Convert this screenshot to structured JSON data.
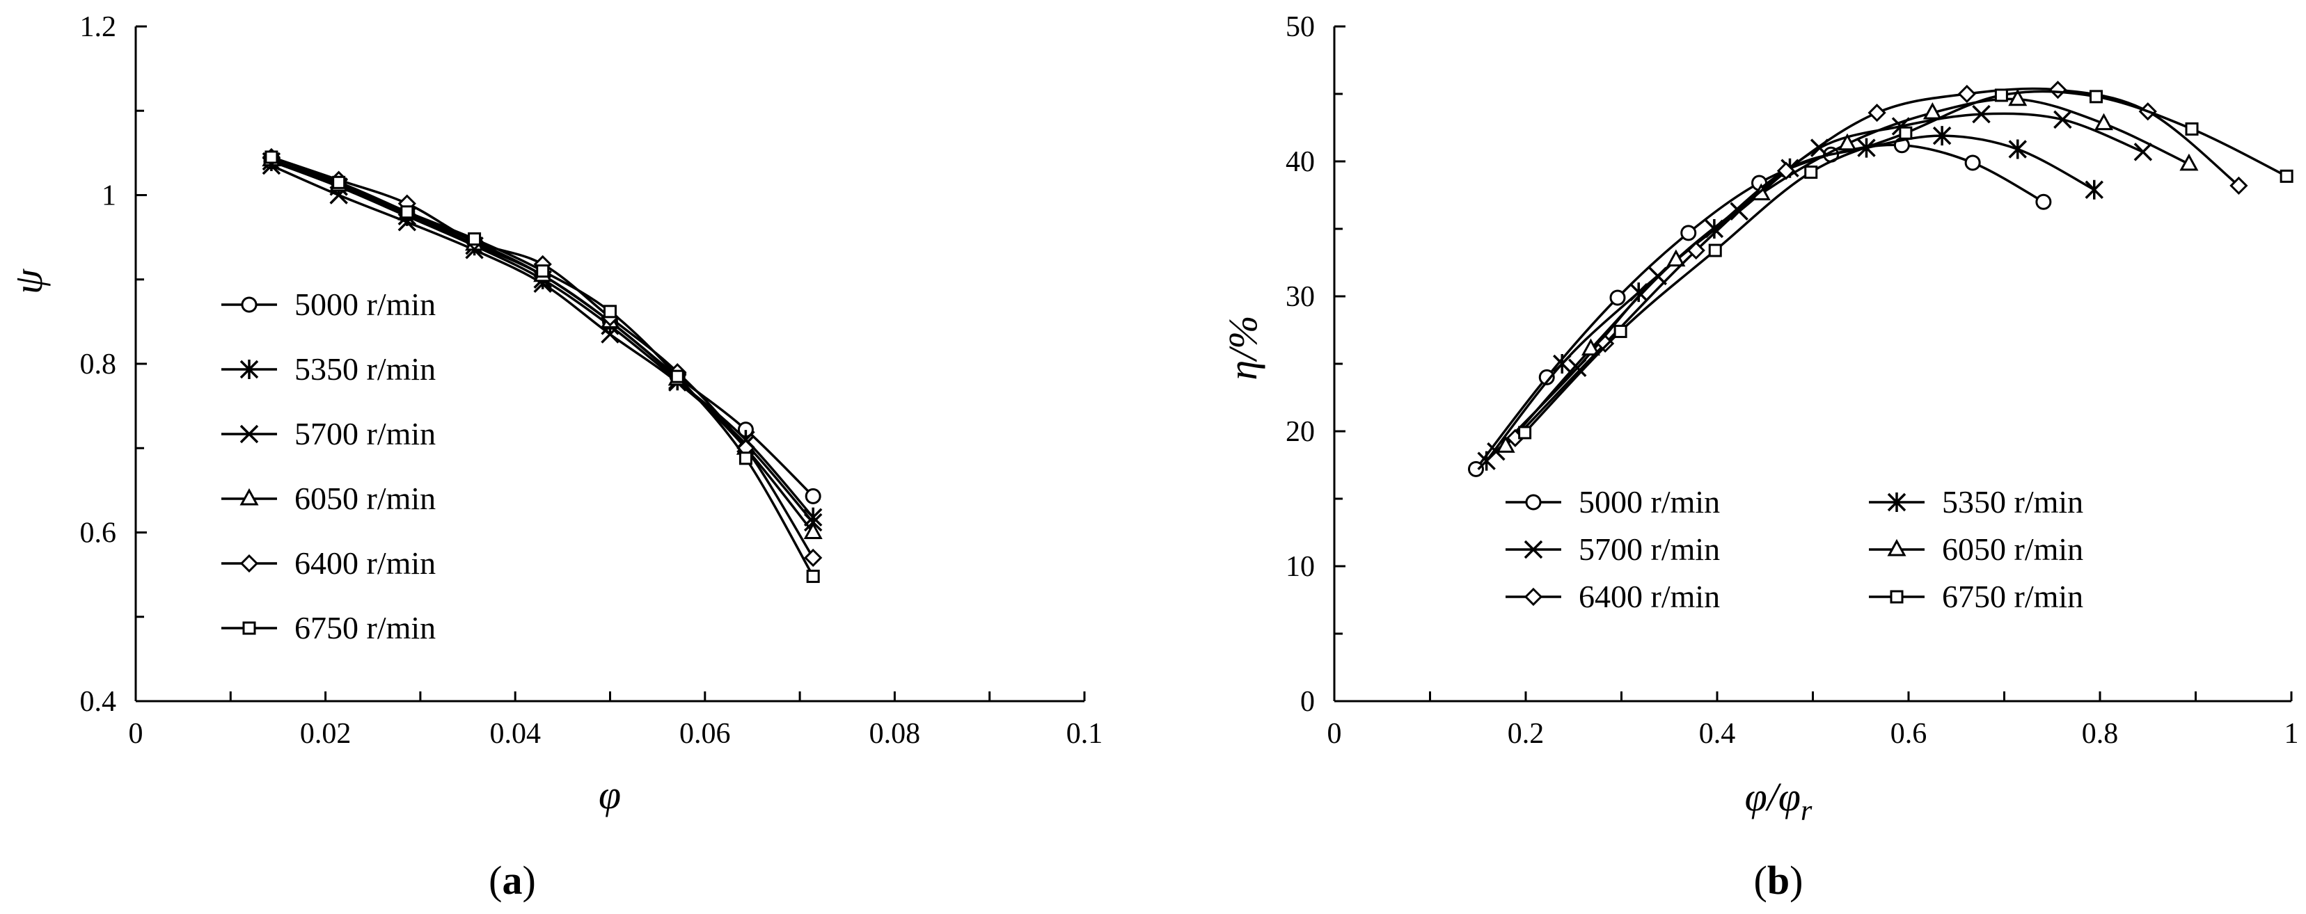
{
  "chart_data": [
    {
      "type": "line",
      "panel_label": "a",
      "xlabel": "φ",
      "ylabel": "ψ",
      "xlim": [
        0,
        0.1
      ],
      "ylim": [
        0.4,
        1.2
      ],
      "xticks": [
        0,
        0.02,
        0.04,
        0.06,
        0.08,
        0.1
      ],
      "xtick_labels": [
        "0",
        "0.02",
        "0.04",
        "0.06",
        "0.08",
        "0.1"
      ],
      "yticks": [
        0.4,
        0.6,
        0.8,
        1,
        1.2
      ],
      "ytick_labels": [
        "0.4",
        "0.6",
        "0.8",
        "1",
        "1.2"
      ],
      "grid": false,
      "legend_position": "left",
      "series": [
        {
          "name": "5000 r/min",
          "marker": "circle",
          "x": [
            0.0143,
            0.0214,
            0.0286,
            0.0357,
            0.0429,
            0.05,
            0.0571,
            0.0643,
            0.0714
          ],
          "y": [
            1.04,
            1.015,
            0.98,
            0.945,
            0.905,
            0.85,
            0.785,
            0.722,
            0.643
          ]
        },
        {
          "name": "5350 r/min",
          "marker": "asterisk",
          "x": [
            0.0143,
            0.0214,
            0.0286,
            0.0357,
            0.0429,
            0.05,
            0.0571,
            0.0643,
            0.0714
          ],
          "y": [
            1.04,
            1.01,
            0.975,
            0.94,
            0.9,
            0.845,
            0.78,
            0.71,
            0.618
          ]
        },
        {
          "name": "5700 r/min",
          "marker": "x",
          "x": [
            0.0143,
            0.0214,
            0.0286,
            0.0357,
            0.0429,
            0.05,
            0.0571,
            0.0643,
            0.0714
          ],
          "y": [
            1.035,
            1.0,
            0.968,
            0.935,
            0.895,
            0.835,
            0.778,
            0.705,
            0.612
          ]
        },
        {
          "name": "6050 r/min",
          "marker": "triangle",
          "x": [
            0.0143,
            0.0214,
            0.0286,
            0.0357,
            0.0429,
            0.05,
            0.0571,
            0.0643,
            0.0714
          ],
          "y": [
            1.042,
            1.012,
            0.978,
            0.942,
            0.905,
            0.85,
            0.782,
            0.7,
            0.6
          ]
        },
        {
          "name": "6400 r/min",
          "marker": "diamond",
          "x": [
            0.0143,
            0.0214,
            0.0286,
            0.0357,
            0.0429,
            0.05,
            0.0571,
            0.0643,
            0.0714
          ],
          "y": [
            1.045,
            1.018,
            0.99,
            0.945,
            0.918,
            0.855,
            0.79,
            0.7,
            0.57
          ]
        },
        {
          "name": "6750 r/min",
          "marker": "square",
          "x": [
            0.0143,
            0.0214,
            0.0286,
            0.0357,
            0.0429,
            0.05,
            0.0571,
            0.0643,
            0.0714
          ],
          "y": [
            1.045,
            1.015,
            0.98,
            0.948,
            0.91,
            0.862,
            0.785,
            0.688,
            0.548
          ]
        }
      ]
    },
    {
      "type": "line",
      "panel_label": "b",
      "xlabel": "φ/φr",
      "xlabel_main": "φ/φ",
      "xlabel_sub": "r",
      "ylabel": "η/%",
      "xlim": [
        0,
        1
      ],
      "ylim": [
        0,
        50
      ],
      "xticks": [
        0,
        0.2,
        0.4,
        0.6,
        0.8,
        1
      ],
      "xtick_labels": [
        "0",
        "0.2",
        "0.4",
        "0.6",
        "0.8",
        "1"
      ],
      "yticks": [
        0,
        10,
        20,
        30,
        40,
        50
      ],
      "ytick_labels": [
        "0",
        "10",
        "20",
        "30",
        "40",
        "50"
      ],
      "grid": false,
      "legend_position": "bottom-center",
      "series": [
        {
          "name": "5000 r/min",
          "marker": "circle",
          "x": [
            0.148,
            0.222,
            0.296,
            0.37,
            0.444,
            0.519,
            0.593,
            0.667,
            0.741
          ],
          "y": [
            17.2,
            24.0,
            29.9,
            34.7,
            38.4,
            40.5,
            41.2,
            39.9,
            37.0
          ]
        },
        {
          "name": "5350 r/min",
          "marker": "asterisk",
          "x": [
            0.159,
            0.238,
            0.318,
            0.397,
            0.476,
            0.556,
            0.635,
            0.714,
            0.794
          ],
          "y": [
            17.8,
            25.0,
            30.3,
            35.0,
            39.5,
            41.0,
            41.9,
            40.9,
            37.9
          ]
        },
        {
          "name": "5700 r/min",
          "marker": "x",
          "x": [
            0.169,
            0.254,
            0.338,
            0.423,
            0.507,
            0.592,
            0.676,
            0.761,
            0.845
          ],
          "y": [
            18.5,
            24.7,
            31.5,
            36.3,
            41.0,
            42.6,
            43.5,
            43.1,
            40.7
          ]
        },
        {
          "name": "6050 r/min",
          "marker": "triangle",
          "x": [
            0.179,
            0.268,
            0.357,
            0.446,
            0.536,
            0.625,
            0.714,
            0.804,
            0.893
          ],
          "y": [
            18.9,
            26.1,
            32.7,
            37.6,
            41.3,
            43.6,
            44.6,
            42.8,
            39.8
          ]
        },
        {
          "name": "6400 r/min",
          "marker": "diamond",
          "x": [
            0.189,
            0.283,
            0.378,
            0.472,
            0.567,
            0.661,
            0.756,
            0.85,
            0.945
          ],
          "y": [
            19.5,
            26.5,
            33.4,
            39.3,
            43.6,
            45.0,
            45.3,
            43.7,
            38.2
          ]
        },
        {
          "name": "6750 r/min",
          "marker": "square",
          "x": [
            0.199,
            0.299,
            0.398,
            0.498,
            0.597,
            0.697,
            0.796,
            0.896,
            0.995
          ],
          "y": [
            19.9,
            27.4,
            33.4,
            39.2,
            42.1,
            44.9,
            44.8,
            42.4,
            38.9
          ]
        }
      ]
    }
  ]
}
